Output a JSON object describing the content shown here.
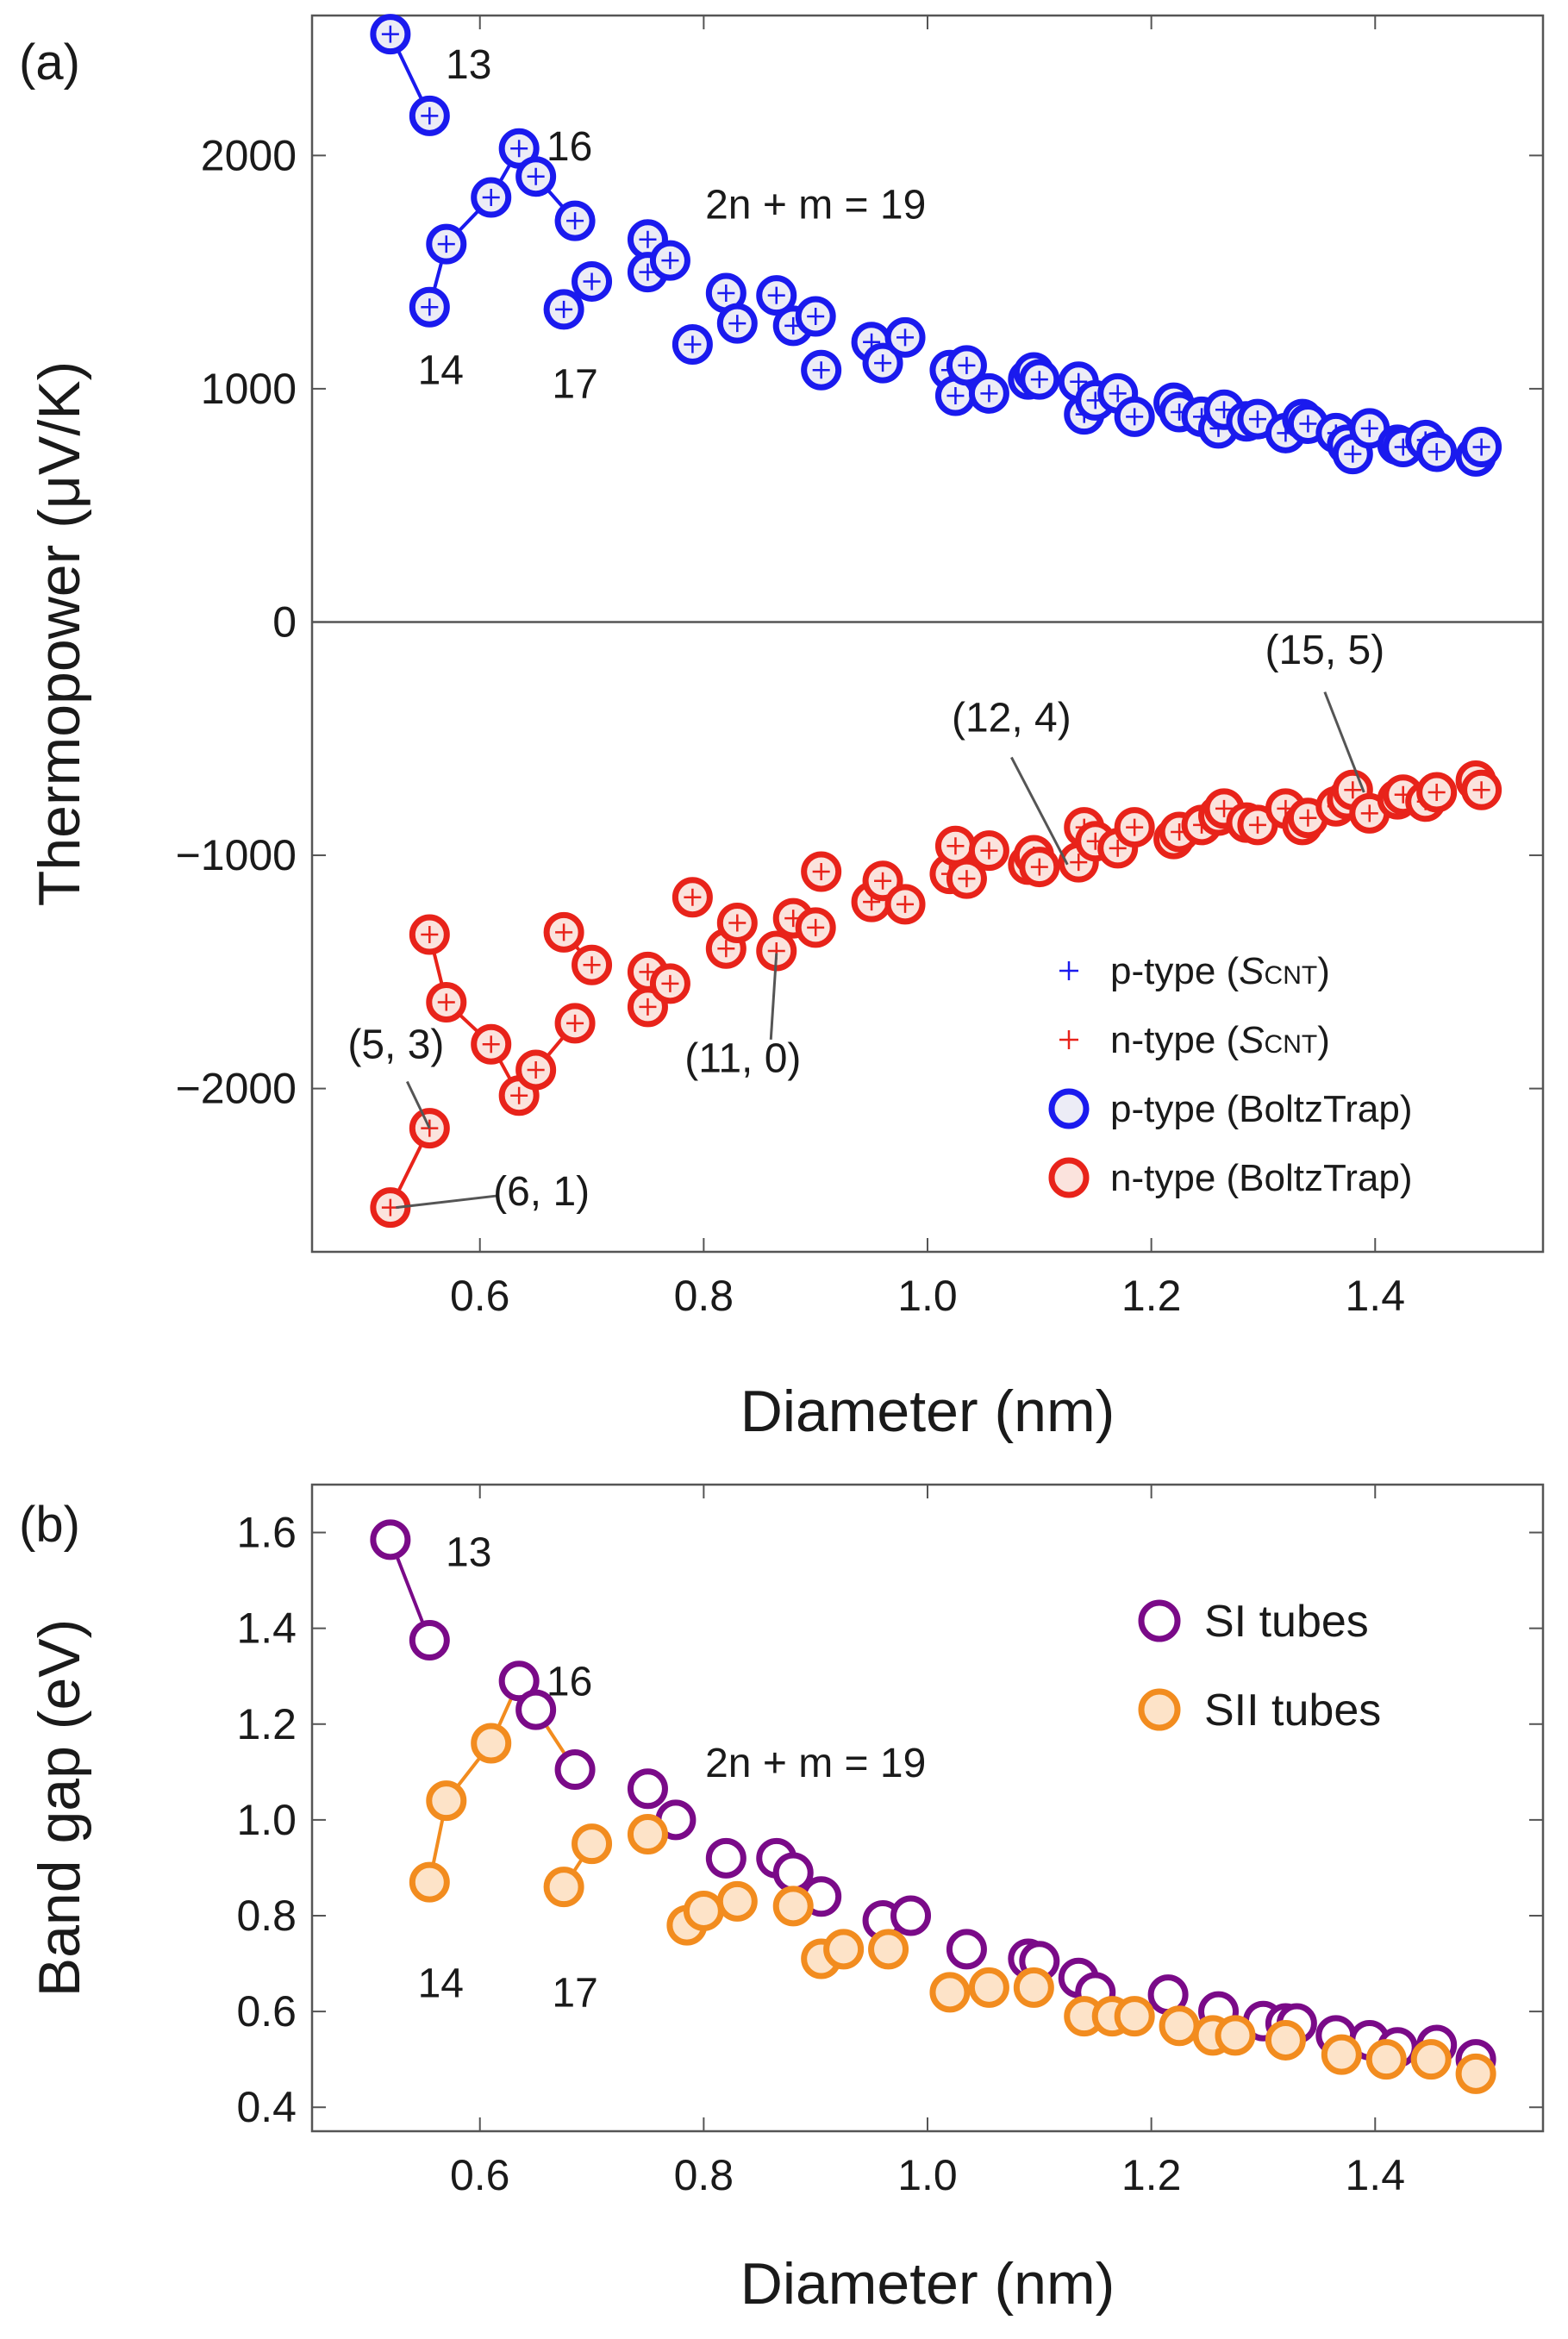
{
  "figure": {
    "panel_a_label": "(a)",
    "panel_b_label": "(b)"
  },
  "chart_data": [
    {
      "panel": "(a)",
      "type": "scatter",
      "title": "",
      "xlabel": "Diameter (nm)",
      "ylabel": "Thermopower (μV/K)",
      "xlim": [
        0.45,
        1.55
      ],
      "ylim": [
        -2700,
        2600
      ],
      "xticks": [
        0.6,
        0.8,
        1.0,
        1.2,
        1.4
      ],
      "xtick_labels": [
        "0.6",
        "0.8",
        "1.0",
        "1.2",
        "1.4"
      ],
      "yticks": [
        -2000,
        -1000,
        0,
        1000,
        2000
      ],
      "ytick_labels": [
        "−2000",
        "−1000",
        "0",
        "1000",
        "2000"
      ],
      "zero_line": true,
      "legend_position": "bottom-right",
      "legend_items": [
        {
          "marker": "plus",
          "color": "#1a1aee",
          "label": "p-type (",
          "sub_symbol": "S",
          "sub_text": "CNT",
          "suffix": ")"
        },
        {
          "marker": "plus",
          "color": "#e8231a",
          "label": "n-type (",
          "sub_symbol": "S",
          "sub_text": "CNT",
          "suffix": ")"
        },
        {
          "marker": "circle",
          "color": "#1a1aee",
          "label": "p-type (BoltzTrap)"
        },
        {
          "marker": "circle",
          "color": "#e8231a",
          "label": "n-type (BoltzTrap)"
        }
      ],
      "series": [
        {
          "name": "p-type",
          "color": "#1a1aee",
          "points": [
            [
              0.52,
              2520
            ],
            [
              0.555,
              2170
            ],
            [
              0.555,
              1350
            ],
            [
              0.57,
              1620
            ],
            [
              0.61,
              1820
            ],
            [
              0.635,
              2030
            ],
            [
              0.65,
              1910
            ],
            [
              0.675,
              1340
            ],
            [
              0.685,
              1720
            ],
            [
              0.7,
              1460
            ],
            [
              0.75,
              1640
            ],
            [
              0.75,
              1500
            ],
            [
              0.77,
              1550
            ],
            [
              0.79,
              1190
            ],
            [
              0.82,
              1410
            ],
            [
              0.83,
              1280
            ],
            [
              0.865,
              1400
            ],
            [
              0.88,
              1270
            ],
            [
              0.9,
              1310
            ],
            [
              0.905,
              1080
            ],
            [
              0.95,
              1200
            ],
            [
              0.96,
              1110
            ],
            [
              0.98,
              1220
            ],
            [
              1.02,
              1080
            ],
            [
              1.025,
              970
            ],
            [
              1.035,
              1100
            ],
            [
              1.055,
              980
            ],
            [
              1.09,
              1040
            ],
            [
              1.095,
              1070
            ],
            [
              1.1,
              1040
            ],
            [
              1.135,
              1030
            ],
            [
              1.14,
              890
            ],
            [
              1.15,
              950
            ],
            [
              1.17,
              980
            ],
            [
              1.185,
              880
            ],
            [
              1.22,
              940
            ],
            [
              1.225,
              900
            ],
            [
              1.245,
              880
            ],
            [
              1.26,
              830
            ],
            [
              1.265,
              910
            ],
            [
              1.285,
              860
            ],
            [
              1.295,
              870
            ],
            [
              1.32,
              810
            ],
            [
              1.335,
              870
            ],
            [
              1.34,
              850
            ],
            [
              1.365,
              810
            ],
            [
              1.375,
              760
            ],
            [
              1.38,
              720
            ],
            [
              1.395,
              830
            ],
            [
              1.42,
              760
            ],
            [
              1.425,
              750
            ],
            [
              1.445,
              780
            ],
            [
              1.455,
              730
            ],
            [
              1.49,
              710
            ],
            [
              1.495,
              750
            ]
          ]
        },
        {
          "name": "n-type",
          "color": "#e8231a",
          "points": [
            [
              0.52,
              -2510
            ],
            [
              0.555,
              -2170
            ],
            [
              0.555,
              -1340
            ],
            [
              0.57,
              -1630
            ],
            [
              0.61,
              -1810
            ],
            [
              0.635,
              -2030
            ],
            [
              0.65,
              -1920
            ],
            [
              0.675,
              -1330
            ],
            [
              0.685,
              -1720
            ],
            [
              0.7,
              -1470
            ],
            [
              0.75,
              -1650
            ],
            [
              0.75,
              -1500
            ],
            [
              0.77,
              -1550
            ],
            [
              0.79,
              -1180
            ],
            [
              0.82,
              -1400
            ],
            [
              0.83,
              -1290
            ],
            [
              0.865,
              -1410
            ],
            [
              0.88,
              -1270
            ],
            [
              0.9,
              -1310
            ],
            [
              0.905,
              -1070
            ],
            [
              0.95,
              -1200
            ],
            [
              0.96,
              -1110
            ],
            [
              0.98,
              -1210
            ],
            [
              1.02,
              -1080
            ],
            [
              1.025,
              -960
            ],
            [
              1.035,
              -1100
            ],
            [
              1.055,
              -980
            ],
            [
              1.09,
              -1040
            ],
            [
              1.095,
              -1000
            ],
            [
              1.1,
              -1050
            ],
            [
              1.135,
              -1030
            ],
            [
              1.14,
              -880
            ],
            [
              1.15,
              -940
            ],
            [
              1.17,
              -970
            ],
            [
              1.185,
              -880
            ],
            [
              1.22,
              -930
            ],
            [
              1.225,
              -900
            ],
            [
              1.245,
              -870
            ],
            [
              1.26,
              -830
            ],
            [
              1.265,
              -800
            ],
            [
              1.285,
              -860
            ],
            [
              1.295,
              -870
            ],
            [
              1.32,
              -800
            ],
            [
              1.335,
              -870
            ],
            [
              1.34,
              -840
            ],
            [
              1.365,
              -790
            ],
            [
              1.375,
              -760
            ],
            [
              1.38,
              -720
            ],
            [
              1.395,
              -820
            ],
            [
              1.42,
              -760
            ],
            [
              1.425,
              -740
            ],
            [
              1.445,
              -770
            ],
            [
              1.455,
              -730
            ],
            [
              1.49,
              -680
            ],
            [
              1.495,
              -720
            ]
          ]
        }
      ],
      "family_lines": [
        {
          "series": "p-type",
          "points": [
            [
              0.52,
              2520
            ],
            [
              0.555,
              2170
            ]
          ]
        },
        {
          "series": "p-type",
          "points": [
            [
              0.555,
              1350
            ],
            [
              0.57,
              1620
            ],
            [
              0.61,
              1820
            ],
            [
              0.635,
              2030
            ],
            [
              0.65,
              1910
            ],
            [
              0.685,
              1720
            ]
          ]
        },
        {
          "series": "p-type",
          "points": [
            [
              0.675,
              1340
            ],
            [
              0.7,
              1460
            ]
          ]
        },
        {
          "series": "n-type",
          "points": [
            [
              0.52,
              -2510
            ],
            [
              0.555,
              -2170
            ]
          ]
        },
        {
          "series": "n-type",
          "points": [
            [
              0.555,
              -1340
            ],
            [
              0.57,
              -1630
            ],
            [
              0.61,
              -1810
            ],
            [
              0.635,
              -2030
            ],
            [
              0.65,
              -1920
            ],
            [
              0.685,
              -1720
            ]
          ]
        },
        {
          "series": "n-type",
          "points": [
            [
              0.675,
              -1330
            ],
            [
              0.7,
              -1470
            ]
          ]
        }
      ],
      "annotations": [
        {
          "text": "13",
          "x": 0.59,
          "y": 2330
        },
        {
          "text": "16",
          "x": 0.68,
          "y": 1980
        },
        {
          "text": "2n + m = 19",
          "x": 0.9,
          "y": 1730
        },
        {
          "text": "14",
          "x": 0.565,
          "y": 1020
        },
        {
          "text": "17",
          "x": 0.685,
          "y": 960
        }
      ],
      "callouts": [
        {
          "text": "(5, 3)",
          "x": 0.525,
          "y": -1870,
          "tx": 0.555,
          "ty": -2170,
          "lx0": 0.535,
          "ly0": -1970
        },
        {
          "text": "(6, 1)",
          "x": 0.655,
          "y": -2500,
          "tx": 0.525,
          "ty": -2510,
          "lx0": 0.615,
          "ly0": -2460
        },
        {
          "text": "(11, 0)",
          "x": 0.835,
          "y": -1930,
          "tx": 0.865,
          "ty": -1420,
          "lx0": 0.86,
          "ly0": -1790
        },
        {
          "text": "(12, 4)",
          "x": 1.075,
          "y": -470,
          "tx": 1.125,
          "ty": -1040,
          "lx0": 1.075,
          "ly0": -580
        },
        {
          "text": "(15, 5)",
          "x": 1.355,
          "y": -180,
          "tx": 1.39,
          "ty": -730,
          "lx0": 1.355,
          "ly0": -300
        }
      ]
    },
    {
      "panel": "(b)",
      "type": "scatter",
      "title": "",
      "xlabel": "Diameter (nm)",
      "ylabel": "Band gap (eV)",
      "xlim": [
        0.45,
        1.55
      ],
      "ylim": [
        0.35,
        1.7
      ],
      "xticks": [
        0.6,
        0.8,
        1.0,
        1.2,
        1.4
      ],
      "xtick_labels": [
        "0.6",
        "0.8",
        "1.0",
        "1.2",
        "1.4"
      ],
      "yticks": [
        0.4,
        0.6,
        0.8,
        1.0,
        1.2,
        1.4,
        1.6
      ],
      "ytick_labels": [
        "0.4",
        "0.6",
        "0.8",
        "1.0",
        "1.2",
        "1.4",
        "1.6"
      ],
      "legend_position": "top-right",
      "legend_items": [
        {
          "marker": "circle",
          "color": "#7a0a88",
          "label": "SI tubes"
        },
        {
          "marker": "circle",
          "color": "#f28c1f",
          "label": "SII tubes"
        }
      ],
      "series": [
        {
          "name": "SI tubes",
          "color": "#7a0a88",
          "points": [
            [
              0.52,
              1.585
            ],
            [
              0.555,
              1.375
            ],
            [
              0.635,
              1.29
            ],
            [
              0.65,
              1.23
            ],
            [
              0.685,
              1.105
            ],
            [
              0.75,
              1.065
            ],
            [
              0.775,
              1.0
            ],
            [
              0.82,
              0.92
            ],
            [
              0.865,
              0.92
            ],
            [
              0.88,
              0.89
            ],
            [
              0.905,
              0.84
            ],
            [
              0.96,
              0.79
            ],
            [
              0.985,
              0.8
            ],
            [
              1.035,
              0.73
            ],
            [
              1.09,
              0.71
            ],
            [
              1.1,
              0.705
            ],
            [
              1.135,
              0.67
            ],
            [
              1.15,
              0.64
            ],
            [
              1.215,
              0.635
            ],
            [
              1.26,
              0.6
            ],
            [
              1.3,
              0.58
            ],
            [
              1.32,
              0.575
            ],
            [
              1.33,
              0.575
            ],
            [
              1.365,
              0.55
            ],
            [
              1.395,
              0.54
            ],
            [
              1.42,
              0.525
            ],
            [
              1.455,
              0.53
            ],
            [
              1.49,
              0.5
            ]
          ]
        },
        {
          "name": "SII tubes",
          "color": "#f28c1f",
          "points": [
            [
              0.555,
              0.87
            ],
            [
              0.57,
              1.04
            ],
            [
              0.61,
              1.16
            ],
            [
              0.675,
              0.86
            ],
            [
              0.7,
              0.95
            ],
            [
              0.75,
              0.97
            ],
            [
              0.785,
              0.78
            ],
            [
              0.8,
              0.81
            ],
            [
              0.83,
              0.83
            ],
            [
              0.88,
              0.82
            ],
            [
              0.905,
              0.71
            ],
            [
              0.925,
              0.73
            ],
            [
              0.965,
              0.73
            ],
            [
              1.02,
              0.64
            ],
            [
              1.055,
              0.65
            ],
            [
              1.095,
              0.65
            ],
            [
              1.14,
              0.59
            ],
            [
              1.165,
              0.59
            ],
            [
              1.185,
              0.59
            ],
            [
              1.225,
              0.57
            ],
            [
              1.255,
              0.55
            ],
            [
              1.275,
              0.55
            ],
            [
              1.32,
              0.54
            ],
            [
              1.37,
              0.51
            ],
            [
              1.41,
              0.5
            ],
            [
              1.45,
              0.5
            ],
            [
              1.49,
              0.47
            ]
          ]
        }
      ],
      "family_lines": [
        {
          "series": "SI tubes",
          "points": [
            [
              0.52,
              1.585
            ],
            [
              0.555,
              1.375
            ]
          ]
        },
        {
          "series": "SII tubes",
          "points": [
            [
              0.555,
              0.87
            ],
            [
              0.57,
              1.04
            ],
            [
              0.61,
              1.16
            ],
            [
              0.635,
              1.29
            ],
            [
              0.65,
              1.23
            ],
            [
              0.685,
              1.105
            ]
          ]
        },
        {
          "series": "SII tubes",
          "points": [
            [
              0.675,
              0.86
            ],
            [
              0.7,
              0.95
            ]
          ]
        }
      ],
      "annotations": [
        {
          "text": "13",
          "x": 0.59,
          "y": 1.53
        },
        {
          "text": "16",
          "x": 0.68,
          "y": 1.26
        },
        {
          "text": "2n + m = 19",
          "x": 0.9,
          "y": 1.09
        },
        {
          "text": "14",
          "x": 0.565,
          "y": 0.63
        },
        {
          "text": "17",
          "x": 0.685,
          "y": 0.61
        }
      ]
    }
  ]
}
